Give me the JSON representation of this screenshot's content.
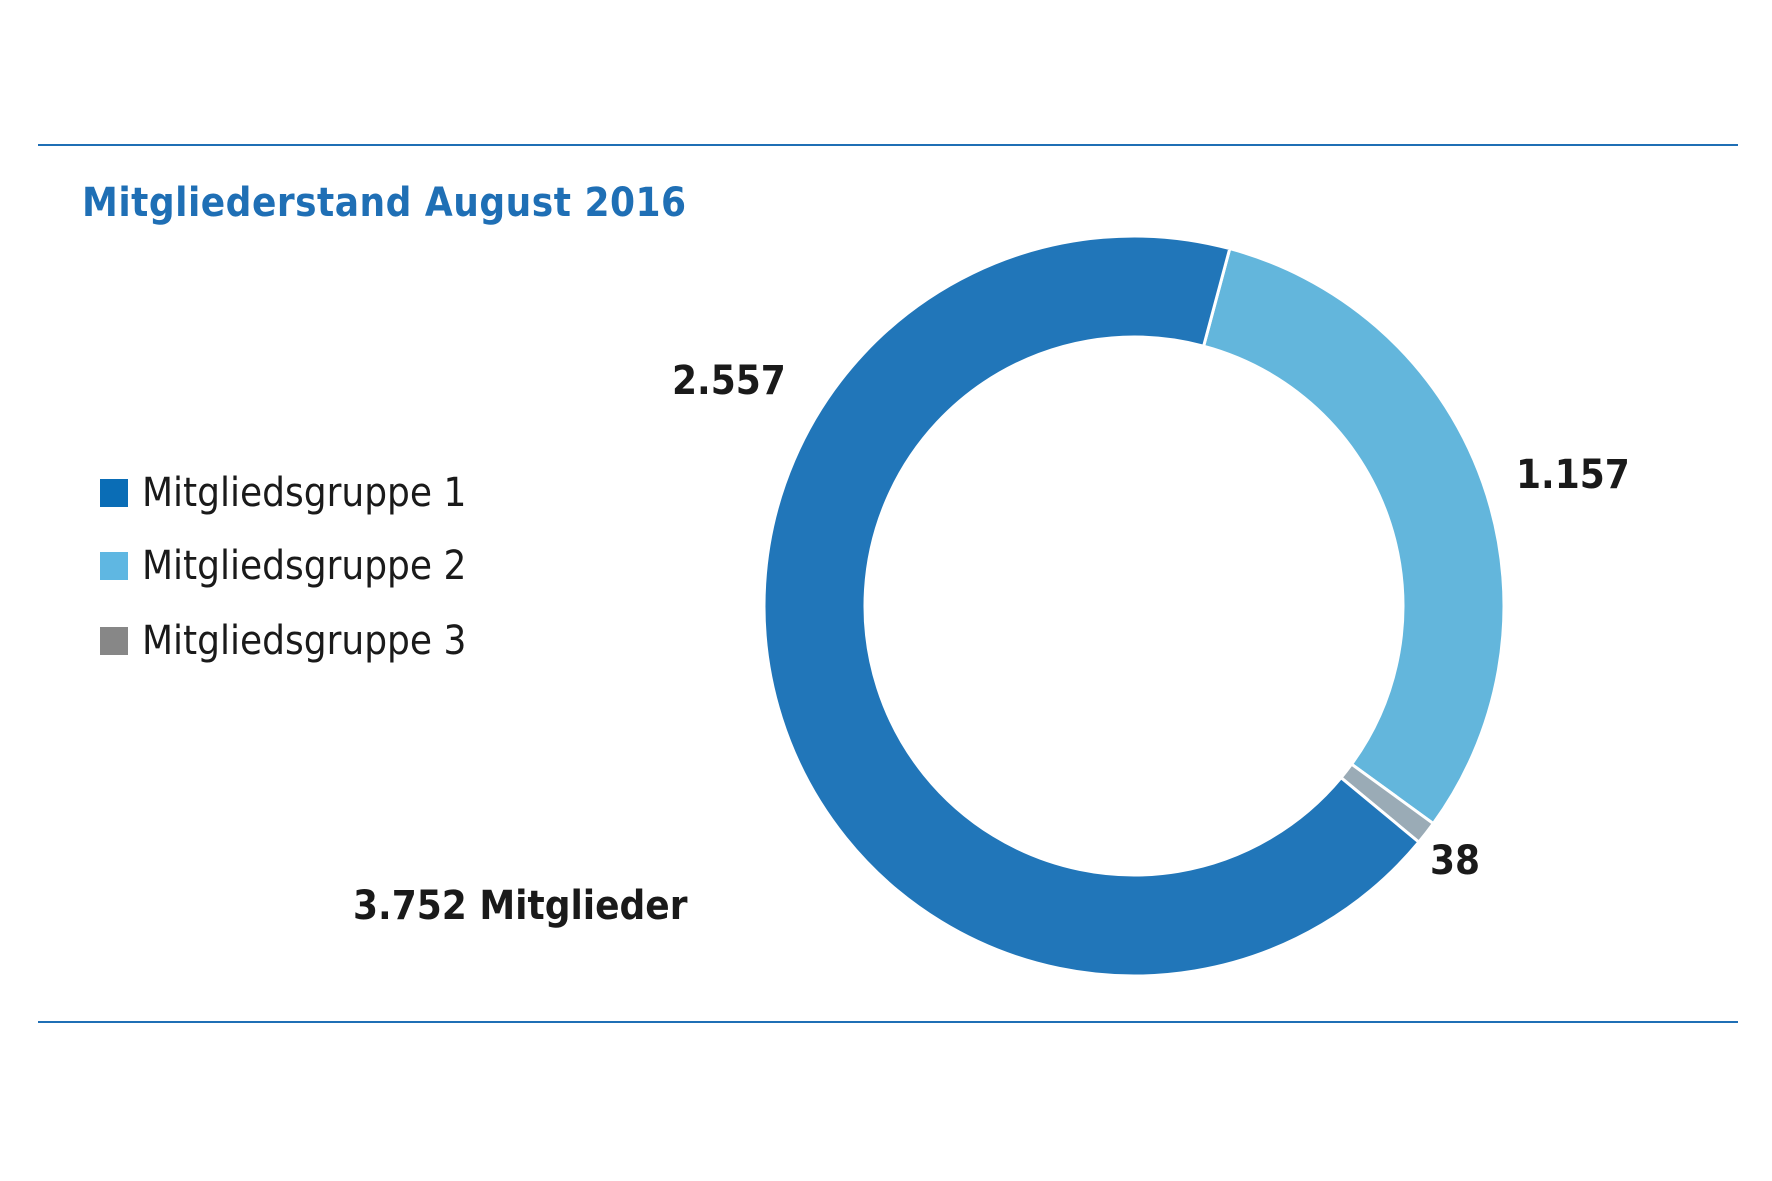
{
  "chart_data": {
    "type": "pie",
    "variant": "donut",
    "title": "Mitgliederstand August 2016",
    "total_label": "3.752 Mitglieder",
    "legend_position": "left",
    "series": [
      {
        "name": "Mitgliedsgruppe 1",
        "value": 2557,
        "label": "2.557",
        "color": "#2176b9",
        "legend_color": "#0a6db6"
      },
      {
        "name": "Mitgliedsgruppe 2",
        "value": 1157,
        "label": "1.157",
        "color": "#63b6dc",
        "legend_color": "#5fb7e2"
      },
      {
        "name": "Mitgliedsgruppe 3",
        "value": 38,
        "label": "38",
        "color": "#9aabb6",
        "legend_color": "#878787"
      }
    ]
  },
  "colors": {
    "accent": "#1f6fb5",
    "text": "#1a1a1a"
  }
}
